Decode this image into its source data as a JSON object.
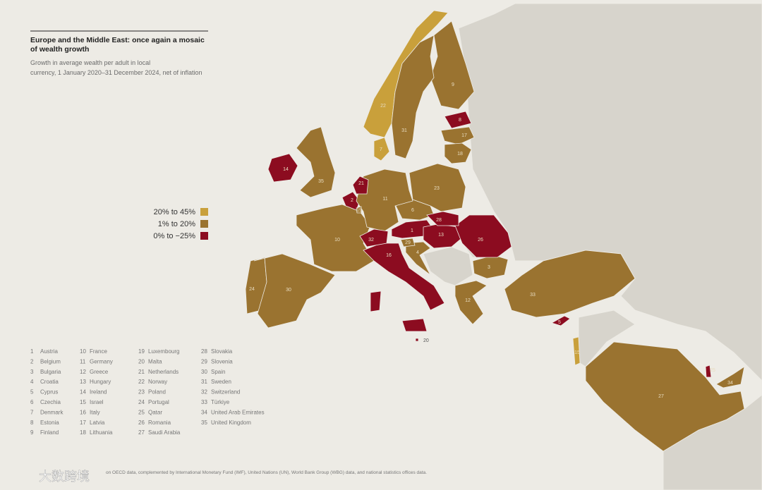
{
  "title": "Europe and the Middle East: once again a mosaic of wealth growth",
  "subtitle": "Growth in average wealth per adult in local currency, 1 January 2020–31 December 2024, net of inflation",
  "legend": [
    {
      "label": "20% to 45%",
      "color": "#c9a03b"
    },
    {
      "label": "1% to 20%",
      "color": "#9a7330"
    },
    {
      "label": "0% to −25%",
      "color": "#8c0c20"
    }
  ],
  "countries": [
    {
      "num": 1,
      "name": "Austria",
      "color": "#8c0c20"
    },
    {
      "num": 2,
      "name": "Belgium",
      "color": "#8c0c20"
    },
    {
      "num": 3,
      "name": "Bulgaria",
      "color": "#9a7330"
    },
    {
      "num": 4,
      "name": "Croatia",
      "color": "#9a7330"
    },
    {
      "num": 5,
      "name": "Cyprus",
      "color": "#8c0c20"
    },
    {
      "num": 6,
      "name": "Czechia",
      "color": "#9a7330"
    },
    {
      "num": 7,
      "name": "Denmark",
      "color": "#c9a03b"
    },
    {
      "num": 8,
      "name": "Estonia",
      "color": "#8c0c20"
    },
    {
      "num": 9,
      "name": "Finland",
      "color": "#9a7330"
    },
    {
      "num": 10,
      "name": "France",
      "color": "#9a7330"
    },
    {
      "num": 11,
      "name": "Germany",
      "color": "#9a7330"
    },
    {
      "num": 12,
      "name": "Greece",
      "color": "#9a7330"
    },
    {
      "num": 13,
      "name": "Hungary",
      "color": "#8c0c20"
    },
    {
      "num": 14,
      "name": "Ireland",
      "color": "#8c0c20"
    },
    {
      "num": 15,
      "name": "Israel",
      "color": "#c9a03b"
    },
    {
      "num": 16,
      "name": "Italy",
      "color": "#8c0c20"
    },
    {
      "num": 17,
      "name": "Latvia",
      "color": "#9a7330"
    },
    {
      "num": 18,
      "name": "Lithuania",
      "color": "#9a7330"
    },
    {
      "num": 19,
      "name": "Luxembourg",
      "color": "#9a7330"
    },
    {
      "num": 20,
      "name": "Malta",
      "color": "#8c0c20"
    },
    {
      "num": 21,
      "name": "Netherlands",
      "color": "#8c0c20"
    },
    {
      "num": 22,
      "name": "Norway",
      "color": "#c9a03b"
    },
    {
      "num": 23,
      "name": "Poland",
      "color": "#9a7330"
    },
    {
      "num": 24,
      "name": "Portugal",
      "color": "#9a7330"
    },
    {
      "num": 25,
      "name": "Qatar",
      "color": "#8c0c20"
    },
    {
      "num": 26,
      "name": "Romania",
      "color": "#8c0c20"
    },
    {
      "num": 27,
      "name": "Saudi Arabia",
      "color": "#9a7330"
    },
    {
      "num": 28,
      "name": "Slovakia",
      "color": "#8c0c20"
    },
    {
      "num": 29,
      "name": "Slovenia",
      "color": "#9a7330"
    },
    {
      "num": 30,
      "name": "Spain",
      "color": "#9a7330"
    },
    {
      "num": 31,
      "name": "Sweden",
      "color": "#9a7330"
    },
    {
      "num": 32,
      "name": "Switzerland",
      "color": "#8c0c20"
    },
    {
      "num": 33,
      "name": "Türkiye",
      "color": "#9a7330"
    },
    {
      "num": 34,
      "name": "United Arab Emirates",
      "color": "#9a7330"
    },
    {
      "num": 35,
      "name": "United Kingdom",
      "color": "#9a7330"
    }
  ],
  "source": "on OECD data, complemented by International Monetary Fund (IMF), United Nations (UN), World Bank Group (WBG) data, and national statistics offices data.",
  "watermark": "大数跨境"
}
